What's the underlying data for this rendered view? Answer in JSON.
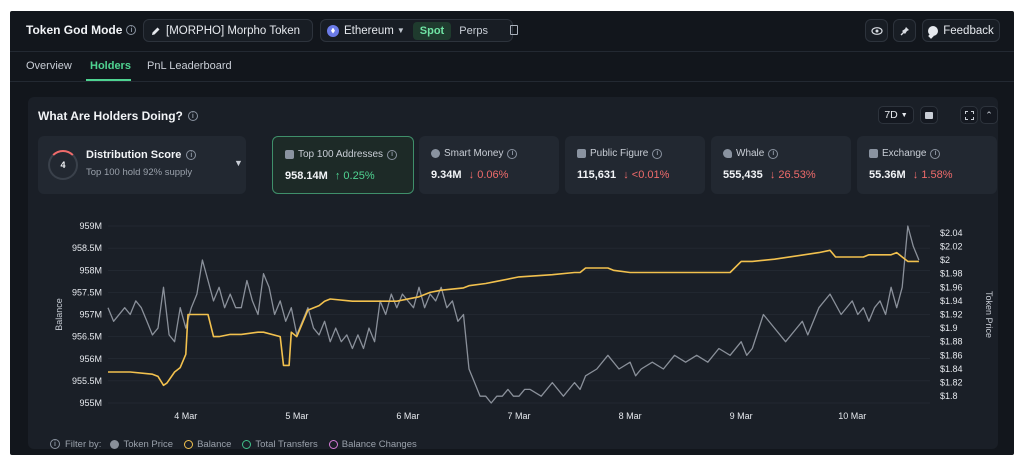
{
  "header": {
    "title": "Token God Mode",
    "token_label": "[MORPHO] Morpho Token",
    "chain": "Ethereum",
    "spot_label": "Spot",
    "perps_label": "Perps",
    "feedback_label": "Feedback"
  },
  "tabs": [
    {
      "label": "Overview"
    },
    {
      "label": "Holders",
      "active": true
    },
    {
      "label": "PnL Leaderboard"
    }
  ],
  "panel": {
    "title": "What Are Holders Doing?",
    "range": "7D"
  },
  "distribution": {
    "score": "4",
    "title": "Distribution Score",
    "subtitle": "Top 100 hold 92% supply"
  },
  "metrics": [
    {
      "label": "Top 100 Addresses",
      "value": "958.14M",
      "change": "↑ 0.25%",
      "direction": "up",
      "icon": "wallet-icon"
    },
    {
      "label": "Smart Money",
      "value": "9.34M",
      "change": "↓ 0.06%",
      "direction": "down",
      "icon": "brain-icon"
    },
    {
      "label": "Public Figure",
      "value": "115,631",
      "change": "↓ <0.01%",
      "direction": "down",
      "icon": "megaphone-icon"
    },
    {
      "label": "Whale",
      "value": "555,435",
      "change": "↓ 26.53%",
      "direction": "down",
      "icon": "whale-icon"
    },
    {
      "label": "Exchange",
      "value": "55.36M",
      "change": "↓ 1.58%",
      "direction": "down",
      "icon": "bank-icon"
    }
  ],
  "colors": {
    "accent": "#4fd391",
    "balance_line": "#f2c14e",
    "price_line": "#8a909a",
    "down": "#ef6b6b"
  },
  "chart_data": {
    "type": "line",
    "ylabel": "Balance",
    "y2label": "Token Price",
    "ylim": [
      955,
      959
    ],
    "y2lim": [
      1.79,
      2.05
    ],
    "y_ticks": [
      "955M",
      "955.5M",
      "956M",
      "956.5M",
      "957M",
      "957.5M",
      "958M",
      "958.5M",
      "959M"
    ],
    "y_tick_values": [
      955,
      955.5,
      956,
      956.5,
      957,
      957.5,
      958,
      958.5,
      959
    ],
    "y2_ticks": [
      "$1.8",
      "$1.82",
      "$1.84",
      "$1.86",
      "$1.88",
      "$1.9",
      "$1.92",
      "$1.94",
      "$1.96",
      "$1.98",
      "$2",
      "$2.02",
      "$2.04"
    ],
    "y2_tick_values": [
      1.8,
      1.82,
      1.84,
      1.86,
      1.88,
      1.9,
      1.92,
      1.94,
      1.96,
      1.98,
      2.0,
      2.02,
      2.04
    ],
    "x_ticks": [
      "4 Mar",
      "5 Mar",
      "6 Mar",
      "7 Mar",
      "8 Mar",
      "9 Mar",
      "10 Mar"
    ],
    "x_tick_values": [
      4,
      5,
      6,
      7,
      8,
      9,
      10
    ],
    "xlim": [
      3.3,
      10.7
    ],
    "series": [
      {
        "name": "Balance",
        "axis": "left",
        "x": [
          3.3,
          3.5,
          3.7,
          3.75,
          3.8,
          3.83,
          3.9,
          3.95,
          4.0,
          4.02,
          4.2,
          4.25,
          4.3,
          4.4,
          4.5,
          4.65,
          4.7,
          4.85,
          4.88,
          4.93,
          4.95,
          5.0,
          5.1,
          5.2,
          5.25,
          5.3,
          5.5,
          5.6,
          5.8,
          5.85,
          5.9,
          6.1,
          6.2,
          6.3,
          6.5,
          6.55,
          6.7,
          6.8,
          6.9,
          7.0,
          7.3,
          7.5,
          7.55,
          7.6,
          7.8,
          7.85,
          8.0,
          8.3,
          8.5,
          8.9,
          9.0,
          9.1,
          9.3,
          9.7,
          9.8,
          9.85,
          10.1,
          10.15,
          10.35,
          10.4,
          10.45,
          10.5,
          10.58,
          10.6
        ],
        "y": [
          955.7,
          955.7,
          955.65,
          955.6,
          955.4,
          955.45,
          955.7,
          955.8,
          956.1,
          957.0,
          957.0,
          956.5,
          956.5,
          956.55,
          956.55,
          956.6,
          956.6,
          956.5,
          955.85,
          955.85,
          956.6,
          956.5,
          957.1,
          957.2,
          957.3,
          957.35,
          957.3,
          957.3,
          957.3,
          957.3,
          957.3,
          957.4,
          957.5,
          957.55,
          957.6,
          957.65,
          957.7,
          957.75,
          957.8,
          957.85,
          957.9,
          957.95,
          957.95,
          958.05,
          958.05,
          958.0,
          957.95,
          957.95,
          957.95,
          957.95,
          958.2,
          958.2,
          958.25,
          958.4,
          958.45,
          958.3,
          958.3,
          958.35,
          958.35,
          958.4,
          958.3,
          958.2,
          958.2,
          958.2
        ]
      },
      {
        "name": "Token Price",
        "axis": "right",
        "x": [
          3.3,
          3.35,
          3.45,
          3.5,
          3.55,
          3.6,
          3.65,
          3.7,
          3.75,
          3.8,
          3.85,
          3.9,
          3.95,
          4.0,
          4.05,
          4.1,
          4.15,
          4.2,
          4.25,
          4.3,
          4.35,
          4.4,
          4.45,
          4.5,
          4.55,
          4.6,
          4.65,
          4.7,
          4.75,
          4.8,
          4.85,
          4.9,
          4.95,
          5.0,
          5.05,
          5.1,
          5.15,
          5.2,
          5.25,
          5.3,
          5.35,
          5.4,
          5.45,
          5.5,
          5.55,
          5.6,
          5.65,
          5.7,
          5.75,
          5.8,
          5.85,
          5.9,
          5.95,
          6.0,
          6.05,
          6.1,
          6.15,
          6.2,
          6.25,
          6.3,
          6.35,
          6.4,
          6.45,
          6.5,
          6.55,
          6.6,
          6.65,
          6.7,
          6.75,
          6.8,
          6.85,
          6.9,
          6.95,
          7.0,
          7.05,
          7.1,
          7.2,
          7.3,
          7.4,
          7.5,
          7.55,
          7.6,
          7.7,
          7.8,
          7.9,
          8.0,
          8.05,
          8.1,
          8.2,
          8.3,
          8.4,
          8.5,
          8.6,
          8.7,
          8.8,
          8.9,
          9.0,
          9.05,
          9.1,
          9.2,
          9.3,
          9.4,
          9.5,
          9.55,
          9.6,
          9.7,
          9.8,
          9.9,
          10.0,
          10.05,
          10.1,
          10.15,
          10.2,
          10.25,
          10.3,
          10.35,
          10.4,
          10.45,
          10.5,
          10.55,
          10.6
        ],
        "y": [
          1.93,
          1.91,
          1.93,
          1.92,
          1.94,
          1.93,
          1.91,
          1.89,
          1.9,
          1.96,
          1.89,
          1.88,
          1.93,
          1.9,
          1.93,
          1.95,
          2.0,
          1.97,
          1.94,
          1.96,
          1.93,
          1.95,
          1.93,
          1.93,
          1.97,
          1.94,
          1.92,
          1.98,
          1.96,
          1.92,
          1.94,
          1.91,
          1.93,
          1.89,
          1.91,
          1.93,
          1.9,
          1.89,
          1.91,
          1.88,
          1.9,
          1.88,
          1.89,
          1.87,
          1.89,
          1.87,
          1.9,
          1.88,
          1.94,
          1.92,
          1.95,
          1.93,
          1.95,
          1.94,
          1.93,
          1.96,
          1.93,
          1.95,
          1.94,
          1.96,
          1.93,
          1.94,
          1.91,
          1.92,
          1.84,
          1.82,
          1.8,
          1.8,
          1.79,
          1.8,
          1.8,
          1.81,
          1.8,
          1.8,
          1.81,
          1.81,
          1.8,
          1.82,
          1.8,
          1.82,
          1.81,
          1.83,
          1.84,
          1.86,
          1.84,
          1.85,
          1.83,
          1.84,
          1.85,
          1.84,
          1.86,
          1.85,
          1.86,
          1.85,
          1.87,
          1.86,
          1.88,
          1.86,
          1.87,
          1.92,
          1.9,
          1.88,
          1.9,
          1.91,
          1.89,
          1.93,
          1.95,
          1.92,
          1.94,
          1.92,
          1.93,
          1.91,
          1.93,
          1.94,
          1.92,
          1.96,
          1.93,
          1.96,
          2.05,
          2.02,
          2.0
        ]
      }
    ]
  },
  "legend": {
    "filter_label": "Filter by:",
    "items": [
      {
        "label": "Token Price",
        "color": "#8a909a",
        "style": "filled"
      },
      {
        "label": "Balance",
        "color": "#f2c14e",
        "style": "ring"
      },
      {
        "label": "Total Transfers",
        "color": "#3fbf88",
        "style": "ring"
      },
      {
        "label": "Balance Changes",
        "color": "#d47ad6",
        "style": "ring"
      }
    ]
  }
}
